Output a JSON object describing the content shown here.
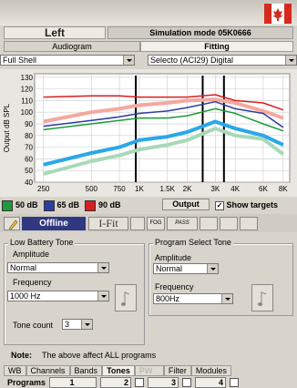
{
  "ear": "Left",
  "mode": "Simulation mode 05K0666",
  "tabs": [
    "Audiogram",
    "Fitting"
  ],
  "selects": [
    "Full Shell",
    "Selecto (ACI29) Digital"
  ],
  "chart_data": {
    "type": "line",
    "y_label": "Output dB SPL",
    "x": [
      250,
      500,
      750,
      1000,
      1500,
      2000,
      3000,
      4000,
      6000,
      8000
    ],
    "xlim": [
      220,
      8800
    ],
    "log_x": true,
    "xticks": [
      250,
      500,
      750,
      {
        "value": 1000,
        "label": "1K"
      },
      {
        "value": 1500,
        "label": "1.5K"
      },
      {
        "value": 2000,
        "label": "2K"
      },
      {
        "value": 3000,
        "label": "3K"
      },
      {
        "value": 4000,
        "label": "4K"
      },
      {
        "value": 6000,
        "label": "6K"
      },
      {
        "value": 8000,
        "label": "8K"
      }
    ],
    "ylim": [
      40,
      133
    ],
    "yticks": [
      40,
      50,
      60,
      70,
      80,
      90,
      100,
      110,
      120,
      130
    ],
    "grid": true,
    "series": [
      {
        "color": "#a8d8b8",
        "width": 4,
        "values": [
          47,
          58,
          63,
          68,
          72,
          76,
          86,
          80,
          77,
          64
        ]
      },
      {
        "color": "#2aa8e8",
        "width": 4,
        "values": [
          55,
          65,
          70,
          76,
          79,
          83,
          92,
          86,
          80,
          72
        ]
      },
      {
        "color": "#f4a8a0",
        "width": 4,
        "values": [
          92,
          100,
          103,
          106,
          108,
          110,
          111,
          108,
          101,
          95
        ]
      },
      {
        "name": "50 dB",
        "color": "#1e9a3c",
        "width": 1.5,
        "values": [
          85,
          90,
          93,
          95,
          95,
          97,
          103,
          99,
          90,
          84
        ]
      },
      {
        "name": "65 dB",
        "color": "#2a3ea0",
        "width": 1.5,
        "values": [
          88,
          93,
          96,
          99,
          101,
          104,
          109,
          103,
          99,
          87
        ]
      },
      {
        "name": "90 dB",
        "color": "#d81e1e",
        "width": 1.5,
        "values": [
          113,
          114,
          114,
          113,
          113,
          113,
          115,
          110,
          108,
          102
        ]
      }
    ],
    "crossovers": [
      950,
      2500,
      3400
    ]
  },
  "chart_controls": {
    "output": "Output",
    "show_targets": "Show targets"
  },
  "toolbar": {
    "offline": "Offline",
    "ifit": "I-Fit",
    "fog": "FOG",
    "pass": "PASS"
  },
  "low_battery": {
    "title": "Low Battery Tone",
    "amplitude_label": "Amplitude",
    "amplitude": "Normal",
    "frequency_label": "Frequency",
    "frequency": "1000 Hz",
    "tone_count_label": "Tone count",
    "tone_count": "3"
  },
  "program_select": {
    "title": "Program Select Tone",
    "amplitude_label": "Amplitude",
    "amplitude": "Normal",
    "frequency_label": "Frequency",
    "frequency": "800Hz"
  },
  "note": {
    "label": "Note:",
    "text": "The above affect ALL programs"
  },
  "bottom_tabs": [
    "WB",
    "Channels",
    "Bands",
    "Tones",
    "PW",
    "Filter",
    "Modules"
  ],
  "programs": {
    "label": "Programs",
    "items": [
      "1",
      "2",
      "3",
      "4"
    ]
  }
}
